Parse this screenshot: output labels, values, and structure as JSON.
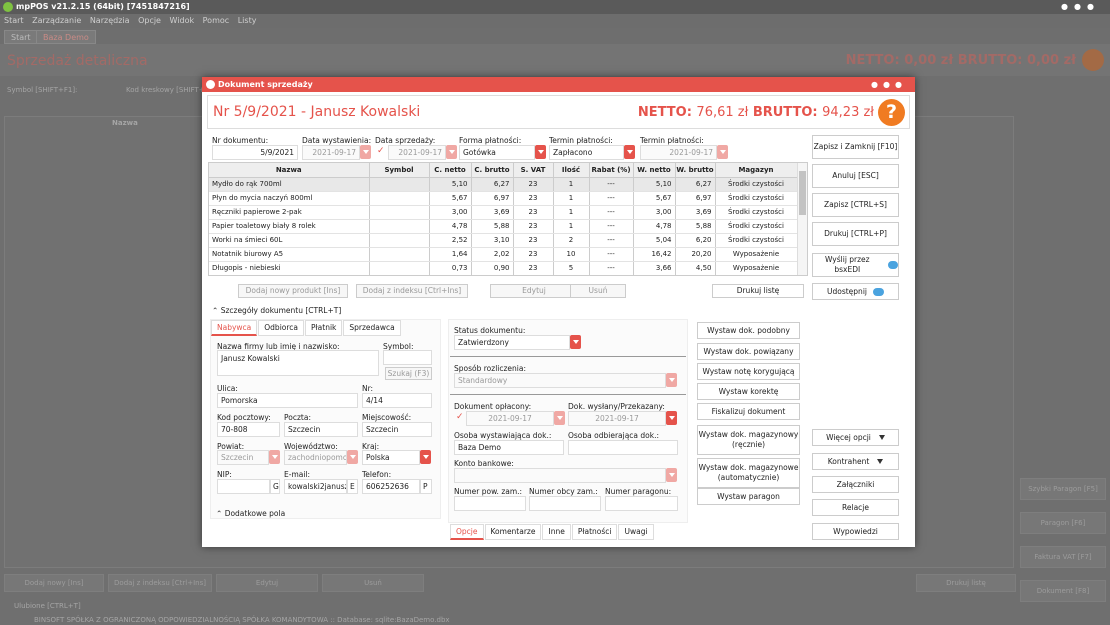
{
  "app": {
    "title": "mpPOS v21.2.15 (64bit) [7451847216]",
    "menu": [
      "Start",
      "Zarządzanie",
      "Narzędzia",
      "Opcje",
      "Widok",
      "Pomoc",
      "Listy"
    ],
    "tabs": [
      "Start",
      "Baza Demo"
    ]
  },
  "bg": {
    "title": "Sprzedaż detaliczna",
    "totals": "NETTO: 0,00 zł BRUTTO: 0,00 zł",
    "symbol_label": "Symbol [SHIFT+F1]:",
    "barcode_label": "Kod kreskowy [SHIFT+F2]:",
    "col_name": "Nazwa",
    "bottom_buttons": [
      "Dodaj nowy [Ins]",
      "Dodaj z indeksu [Ctrl+Ins]",
      "Edytuj",
      "Usuń",
      "Drukuj listę"
    ],
    "right_buttons": [
      "Szybki Paragon [F5]",
      "Paragon [F6]",
      "Faktura VAT [F7]",
      "Dokument [F8]"
    ],
    "favorites": "Ulubione [CTRL+T]",
    "status": "BINSOFT SPÓŁKA Z OGRANICZONĄ ODPOWIEDZIALNOŚCIĄ SPÓŁKA KOMANDYTOWA :: Database: sqlite:BazaDemo.dbx"
  },
  "dialog": {
    "title": "Dokument sprzedaży",
    "doc_title": "Nr 5/9/2021 - Janusz Kowalski",
    "netto_label": "NETTO:",
    "netto": "76,61 zł",
    "brutto_label": "BRUTTO:",
    "brutto": "94,23 zł",
    "help": "?",
    "fields": {
      "nr_label": "Nr dokumentu:",
      "nr": "5/9/2021",
      "issue_label": "Data wystawienia:",
      "issue": "2021-09-17",
      "sale_label": "Data sprzedaży:",
      "sale": "2021-09-17",
      "payment_label": "Forma płatności:",
      "payment": "Gotówka",
      "term_label": "Termin płatności:",
      "term": "Zapłacono",
      "term2_label": "Termin płatności:",
      "term2": "2021-09-17"
    },
    "table": {
      "headers": [
        "Nazwa",
        "Symbol",
        "C. netto",
        "C. brutto",
        "S. VAT",
        "Ilość",
        "Rabat (%)",
        "W. netto",
        "W. brutto",
        "Magazyn"
      ],
      "rows": [
        [
          "Mydło do rąk 700ml",
          "",
          "5,10",
          "6,27",
          "23",
          "1",
          "---",
          "5,10",
          "6,27",
          "Środki czystości"
        ],
        [
          "Płyn do mycia naczyń 800ml",
          "",
          "5,67",
          "6,97",
          "23",
          "1",
          "---",
          "5,67",
          "6,97",
          "Środki czystości"
        ],
        [
          "Ręczniki papierowe 2-pak",
          "",
          "3,00",
          "3,69",
          "23",
          "1",
          "---",
          "3,00",
          "3,69",
          "Środki czystości"
        ],
        [
          "Papier toaletowy biały 8 rolek",
          "",
          "4,78",
          "5,88",
          "23",
          "1",
          "---",
          "4,78",
          "5,88",
          "Środki czystości"
        ],
        [
          "Worki na śmieci 60L",
          "",
          "2,52",
          "3,10",
          "23",
          "2",
          "---",
          "5,04",
          "6,20",
          "Środki czystości"
        ],
        [
          "Notatnik biurowy A5",
          "",
          "1,64",
          "2,02",
          "23",
          "10",
          "---",
          "16,42",
          "20,20",
          "Wyposażenie"
        ],
        [
          "Długopis - niebieski",
          "",
          "0,73",
          "0,90",
          "23",
          "5",
          "---",
          "3,66",
          "4,50",
          "Wyposażenie"
        ]
      ]
    },
    "table_buttons": [
      "Dodaj nowy produkt [Ins]",
      "Dodaj z indeksu [Ctrl+Ins]",
      "Edytuj",
      "Usuń",
      "Drukuj listę"
    ],
    "details_label": "Szczegóły dokumentu [CTRL+T]",
    "party_tabs": [
      "Nabywca",
      "Odbiorca",
      "Płatnik",
      "Sprzedawca"
    ],
    "party": {
      "name_label": "Nazwa firmy lub imię i nazwisko:",
      "name": "Janusz Kowalski",
      "symbol_label": "Symbol:",
      "search": "Szukaj (F3)",
      "street_label": "Ulica:",
      "street": "Pomorska",
      "nr_label": "Nr:",
      "nr": "4/14",
      "zip_label": "Kod pocztowy:",
      "zip": "70-808",
      "post_label": "Poczta:",
      "post": "Szczecin",
      "city_label": "Miejscowość:",
      "city": "Szczecin",
      "county_label": "Powiat:",
      "county": "Szczecin",
      "voiv_label": "Województwo:",
      "voiv": "zachodniopomor",
      "country_label": "Kraj:",
      "country": "Polska",
      "nip_label": "NIP:",
      "nip_btn": "G",
      "email_label": "E-mail:",
      "email": "kowalski2janusz@",
      "email_btn": "E",
      "phone_label": "Telefon:",
      "phone": "606252636",
      "phone_btn": "P"
    },
    "extra_label": "Dodatkowe pola",
    "status": {
      "status_label": "Status dokumentu:",
      "status": "Zatwierdzony",
      "settle_label": "Sposób rozliczenia:",
      "settle": "Standardowy",
      "paid_label": "Dokument opłacony:",
      "paid": "2021-09-17",
      "sent_label": "Dok. wysłany/Przekazany:",
      "sent": "2021-09-17",
      "issuer_label": "Osoba wystawiająca dok.:",
      "issuer": "Baza Demo",
      "receiver_label": "Osoba odbierająca dok.:",
      "bank_label": "Konto bankowe:",
      "own_label": "Numer pow. zam.:",
      "foreign_label": "Numer obcy zam.:",
      "receipt_label": "Numer paragonu:"
    },
    "bottom_tabs": [
      "Opcje",
      "Komentarze",
      "Inne",
      "Płatności",
      "Uwagi"
    ],
    "actions": [
      "Wystaw dok. podobny",
      "Wystaw dok. powiązany",
      "Wystaw notę korygującą",
      "Wystaw korektę",
      "Fiskalizuj dokument",
      "Wystaw dok. magazynowy (ręcznie)",
      "Wystaw dok. magazynowe (automatycznie)",
      "Wystaw paragon"
    ],
    "right": {
      "save_close": "Zapisz i Zamknij [F10]",
      "cancel": "Anuluj [ESC]",
      "save": "Zapisz [CTRL+S]",
      "print": "Drukuj [CTRL+P]",
      "send": "Wyślij przez bsxEDI",
      "share": "Udostępnij",
      "more": "Więcej opcji",
      "contractor": "Kontrahent",
      "attachments": "Załączniki",
      "relations": "Relacje",
      "statements": "Wypowiedzi"
    }
  }
}
